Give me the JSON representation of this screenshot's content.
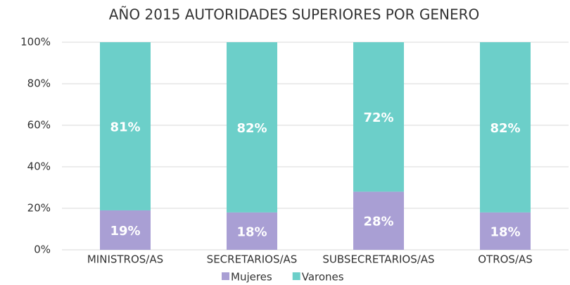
{
  "chart_data": {
    "type": "stacked_bar",
    "title": "AÑO 2015 AUTORIDADES SUPERIORES POR GENERO",
    "categories": [
      "MINISTROS/AS",
      "SECRETARIOS/AS",
      "SUBSECRETARIOS/AS",
      "OTROS/AS"
    ],
    "series": [
      {
        "name": "Mujeres",
        "color": "#a99fd4",
        "values": [
          19,
          18,
          28,
          18
        ],
        "value_labels": [
          "19%",
          "18%",
          "28%",
          "18%"
        ]
      },
      {
        "name": "Varones",
        "color": "#6ccfc9",
        "values": [
          81,
          82,
          72,
          82
        ],
        "value_labels": [
          "81%",
          "82%",
          "72%",
          "82%"
        ]
      }
    ],
    "ylim": [
      0,
      100
    ],
    "yticks": [
      {
        "value": 0,
        "label": "0%"
      },
      {
        "value": 20,
        "label": "20%"
      },
      {
        "value": 40,
        "label": "40%"
      },
      {
        "value": 60,
        "label": "60%"
      },
      {
        "value": 80,
        "label": "80%"
      },
      {
        "value": 100,
        "label": "100%"
      }
    ],
    "grid": true,
    "legend": "bottom"
  }
}
